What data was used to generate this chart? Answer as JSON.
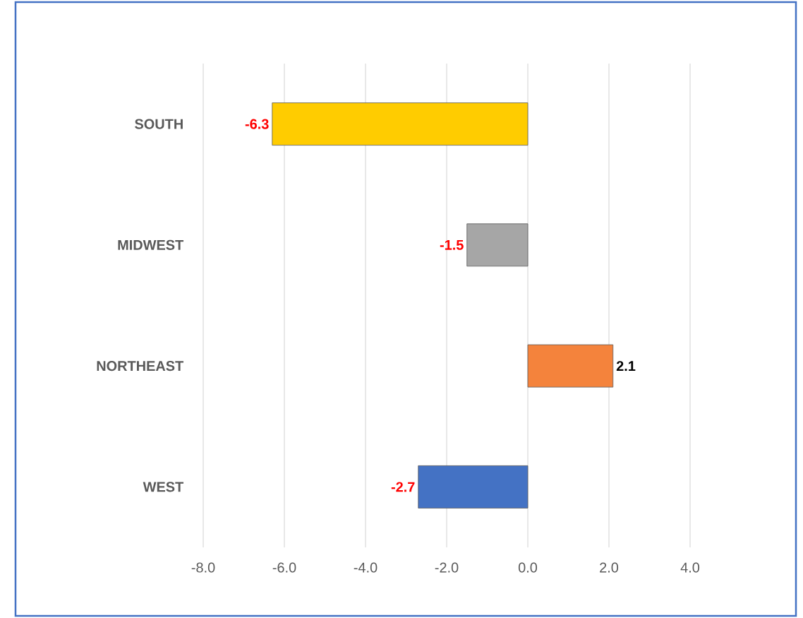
{
  "chart_data": {
    "type": "bar",
    "orientation": "horizontal",
    "categories": [
      "SOUTH",
      "MIDWEST",
      "NORTHEAST",
      "WEST"
    ],
    "values": [
      -6.3,
      -1.5,
      2.1,
      -2.7
    ],
    "colors": [
      "#ffcc00",
      "#a6a6a6",
      "#f4833c",
      "#4472c4"
    ],
    "xlim": [
      -8,
      4
    ],
    "xticks": [
      {
        "value": -8,
        "label": "-8.0"
      },
      {
        "value": -6,
        "label": "-6.0"
      },
      {
        "value": -4,
        "label": "-4.0"
      },
      {
        "value": -2,
        "label": "-2.0"
      },
      {
        "value": 0,
        "label": "0.0"
      },
      {
        "value": 2,
        "label": "2.0"
      },
      {
        "value": 4,
        "label": "4.0"
      }
    ],
    "grid": "x",
    "data_labels": true
  }
}
